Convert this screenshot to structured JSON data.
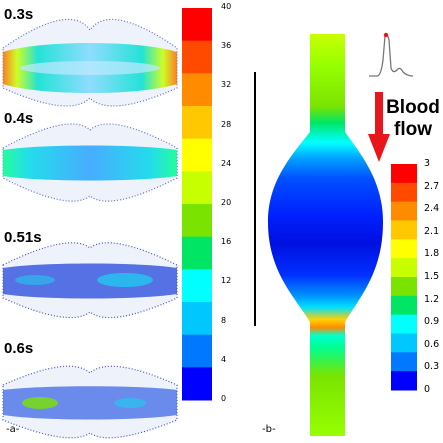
{
  "panel_a": {
    "tag": "-a-",
    "snapshots": [
      {
        "time": "0.3s"
      },
      {
        "time": "0.4s"
      },
      {
        "time": "0.51s"
      },
      {
        "time": "0.6s"
      }
    ],
    "colorbar_ticks": [
      "40",
      "36",
      "32",
      "28",
      "24",
      "20",
      "16",
      "12",
      "8",
      "4",
      "0"
    ],
    "colorbar_colors": [
      "#ff0000",
      "#ff4a00",
      "#ff8c00",
      "#ffc800",
      "#ffff00",
      "#c8ff00",
      "#7ae400",
      "#00e664",
      "#00ffff",
      "#00c8ff",
      "#0078ff",
      "#0000ff"
    ]
  },
  "panel_b": {
    "tag": "-b-",
    "flow_label_line1": "Blood",
    "flow_label_line2": "flow",
    "colorbar_ticks": [
      "3",
      "2.7",
      "2.4",
      "2.1",
      "1.8",
      "1.5",
      "1.2",
      "0.9",
      "0.6",
      "0.3",
      "0"
    ],
    "colorbar_colors": [
      "#ff0000",
      "#ff4a00",
      "#ff8c00",
      "#ffc800",
      "#ffff00",
      "#c8ff00",
      "#7ae400",
      "#00e664",
      "#00ffff",
      "#00c8ff",
      "#0078ff",
      "#0000ff"
    ],
    "arrow_color": "#e8161a"
  }
}
